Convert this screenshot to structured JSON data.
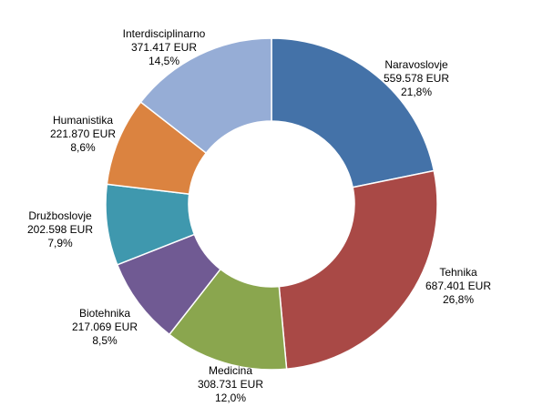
{
  "chart_data": {
    "type": "pie",
    "variant": "donut",
    "title": "",
    "legend": "none",
    "slices": [
      {
        "category": "Naravoslovje",
        "value": 559578,
        "value_label": "559.578 EUR",
        "percent_label": "21,8%",
        "color": "#4472A8"
      },
      {
        "category": "Tehnika",
        "value": 687401,
        "value_label": "687.401 EUR",
        "percent_label": "26,8%",
        "color": "#A94946"
      },
      {
        "category": "Medicina",
        "value": 308731,
        "value_label": "308.731 EUR",
        "percent_label": "12,0%",
        "color": "#8AA64E"
      },
      {
        "category": "Biotehnika",
        "value": 217069,
        "value_label": "217.069 EUR",
        "percent_label": "8,5%",
        "color": "#705A93"
      },
      {
        "category": "Družboslovje",
        "value": 202598,
        "value_label": "202.598 EUR",
        "percent_label": "7,9%",
        "color": "#3F98AE"
      },
      {
        "category": "Humanistika",
        "value": 221870,
        "value_label": "221.870 EUR",
        "percent_label": "8,6%",
        "color": "#DB8340"
      },
      {
        "category": "Interdisciplinarno",
        "value": 371417,
        "value_label": "371.417 EUR",
        "percent_label": "14,5%",
        "color": "#96ADD6"
      }
    ]
  }
}
